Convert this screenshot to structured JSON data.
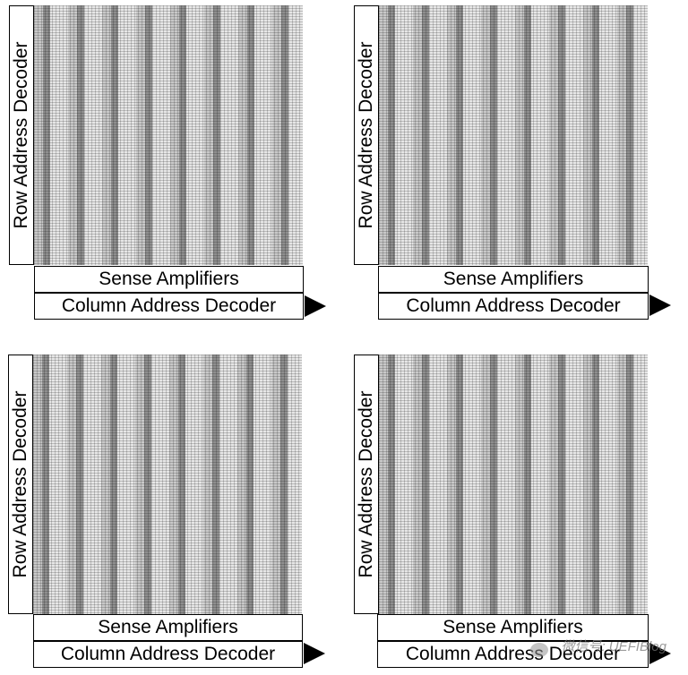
{
  "banks": [
    {
      "row_decoder_label": "Row Address Decoder",
      "sense_amplifiers_label": "Sense Amplifiers",
      "column_decoder_label": "Column Address Decoder"
    },
    {
      "row_decoder_label": "Row Address Decoder",
      "sense_amplifiers_label": "Sense Amplifiers",
      "column_decoder_label": "Column Address Decoder"
    },
    {
      "row_decoder_label": "Row Address Decoder",
      "sense_amplifiers_label": "Sense Amplifiers",
      "column_decoder_label": "Column Address Decoder"
    },
    {
      "row_decoder_label": "Row Address Decoder",
      "sense_amplifiers_label": "Sense Amplifiers",
      "column_decoder_label": "Column Address Decoder"
    }
  ],
  "watermark": "微信号: UEFIBlog"
}
